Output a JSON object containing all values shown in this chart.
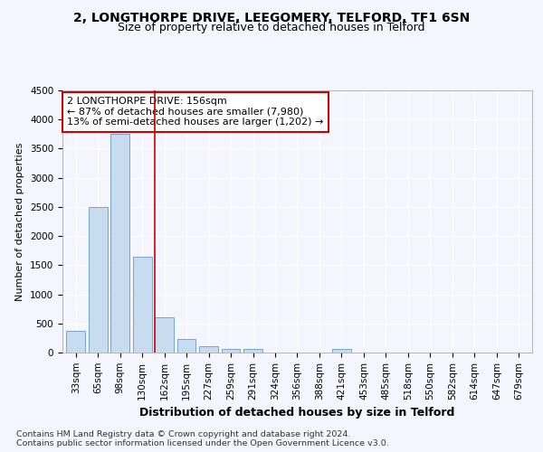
{
  "title1": "2, LONGTHORPE DRIVE, LEEGOMERY, TELFORD, TF1 6SN",
  "title2": "Size of property relative to detached houses in Telford",
  "xlabel": "Distribution of detached houses by size in Telford",
  "ylabel": "Number of detached properties",
  "categories": [
    "33sqm",
    "65sqm",
    "98sqm",
    "130sqm",
    "162sqm",
    "195sqm",
    "227sqm",
    "259sqm",
    "291sqm",
    "324sqm",
    "356sqm",
    "388sqm",
    "421sqm",
    "453sqm",
    "485sqm",
    "518sqm",
    "550sqm",
    "582sqm",
    "614sqm",
    "647sqm",
    "679sqm"
  ],
  "values": [
    375,
    2500,
    3750,
    1640,
    600,
    240,
    105,
    60,
    55,
    0,
    0,
    0,
    55,
    0,
    0,
    0,
    0,
    0,
    0,
    0,
    0
  ],
  "bar_color": "#c8dcf0",
  "bar_edge_color": "#6699cc",
  "vline_x": 3.55,
  "vline_color": "#cc0000",
  "annotation_text": "2 LONGTHORPE DRIVE: 156sqm\n← 87% of detached houses are smaller (7,980)\n13% of semi-detached houses are larger (1,202) →",
  "annotation_box_color": "#cc0000",
  "ylim": [
    0,
    4500
  ],
  "yticks": [
    0,
    500,
    1000,
    1500,
    2000,
    2500,
    3000,
    3500,
    4000,
    4500
  ],
  "footnote": "Contains HM Land Registry data © Crown copyright and database right 2024.\nContains public sector information licensed under the Open Government Licence v3.0.",
  "bg_color": "#f5f5ff",
  "plot_bg_color": "#f5f5ff",
  "grid_color": "#ffffff",
  "title1_fontsize": 10,
  "title2_fontsize": 9,
  "xlabel_fontsize": 9,
  "ylabel_fontsize": 8,
  "tick_fontsize": 7.5,
  "annotation_fontsize": 8,
  "footnote_fontsize": 6.8
}
